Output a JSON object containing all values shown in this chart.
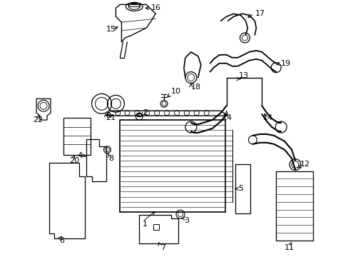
{
  "bg_color": "#ffffff",
  "line_color": "#000000",
  "text_color": "#000000",
  "figsize": [
    4.89,
    3.6
  ],
  "dpi": 100
}
